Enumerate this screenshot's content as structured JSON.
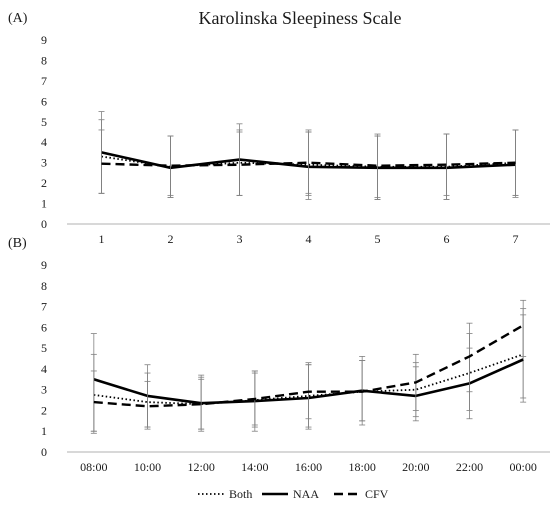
{
  "chart_data": {
    "title": "Karolinska Sleepiness Scale",
    "legend": {
      "placement": "bottom",
      "entries": [
        {
          "name": "Both",
          "style": "dotted"
        },
        {
          "name": "NAA",
          "style": "solid"
        },
        {
          "name": "CFV",
          "style": "dashed"
        }
      ]
    },
    "panels": [
      {
        "label": "(A)",
        "type": "line",
        "categories": [
          "1",
          "2",
          "3",
          "4",
          "5",
          "6",
          "7"
        ],
        "ylim": [
          0,
          9
        ],
        "yticks": [
          0,
          1,
          2,
          3,
          4,
          5,
          6,
          7,
          8,
          9
        ],
        "grid": false,
        "series": [
          {
            "name": "Both",
            "values": [
              3.3,
              2.8,
              3.0,
              2.9,
              2.8,
              2.8,
              3.0
            ],
            "err_low": [
              1.5,
              1.3,
              1.4,
              1.4,
              1.2,
              1.2,
              1.4
            ],
            "err_high": [
              5.1,
              4.3,
              4.6,
              4.5,
              4.3,
              4.4,
              4.6
            ]
          },
          {
            "name": "NAA",
            "values": [
              3.5,
              2.75,
              3.15,
              2.8,
              2.75,
              2.75,
              2.9
            ],
            "err_low": [
              1.5,
              1.3,
              1.4,
              1.2,
              1.2,
              1.2,
              1.3
            ],
            "err_high": [
              5.5,
              4.3,
              4.9,
              4.6,
              4.4,
              4.4,
              4.6
            ]
          },
          {
            "name": "CFV",
            "values": [
              2.95,
              2.85,
              2.9,
              3.0,
              2.85,
              2.9,
              3.0
            ],
            "err_low": [
              1.5,
              1.4,
              1.4,
              1.5,
              1.3,
              1.4,
              1.4
            ],
            "err_high": [
              4.6,
              4.3,
              4.5,
              4.5,
              4.3,
              4.4,
              4.6
            ]
          }
        ]
      },
      {
        "label": "(B)",
        "type": "line",
        "categories": [
          "08:00",
          "10:00",
          "12:00",
          "14:00",
          "16:00",
          "18:00",
          "20:00",
          "22:00",
          "00:00"
        ],
        "ylim": [
          0,
          9
        ],
        "yticks": [
          0,
          1,
          2,
          3,
          4,
          5,
          6,
          7,
          8,
          9
        ],
        "grid": false,
        "series": [
          {
            "name": "Both",
            "values": [
              2.75,
              2.4,
              2.3,
              2.5,
              2.7,
              2.9,
              3.0,
              3.8,
              4.7
            ],
            "err_low": [
              1.0,
              1.2,
              1.1,
              1.2,
              1.2,
              1.5,
              1.7,
              2.0,
              2.6
            ],
            "err_high": [
              4.7,
              3.8,
              3.5,
              3.9,
              4.2,
              4.4,
              4.3,
              5.7,
              6.9
            ]
          },
          {
            "name": "NAA",
            "values": [
              3.5,
              2.7,
              2.35,
              2.45,
              2.6,
              2.95,
              2.7,
              3.3,
              4.45
            ],
            "err_low": [
              1.0,
              1.2,
              1.0,
              1.0,
              1.1,
              1.3,
              1.5,
              1.6,
              2.4
            ],
            "err_high": [
              5.7,
              4.2,
              3.7,
              3.9,
              4.2,
              4.6,
              4.1,
              5.0,
              6.6
            ]
          },
          {
            "name": "CFV",
            "values": [
              2.4,
              2.2,
              2.3,
              2.55,
              2.9,
              2.9,
              3.35,
              4.6,
              6.1
            ],
            "err_low": [
              0.9,
              1.1,
              1.1,
              1.3,
              1.6,
              1.5,
              2.0,
              2.9,
              4.6
            ],
            "err_high": [
              3.9,
              3.4,
              3.6,
              3.8,
              4.3,
              4.4,
              4.7,
              6.2,
              7.3
            ]
          }
        ]
      }
    ]
  }
}
